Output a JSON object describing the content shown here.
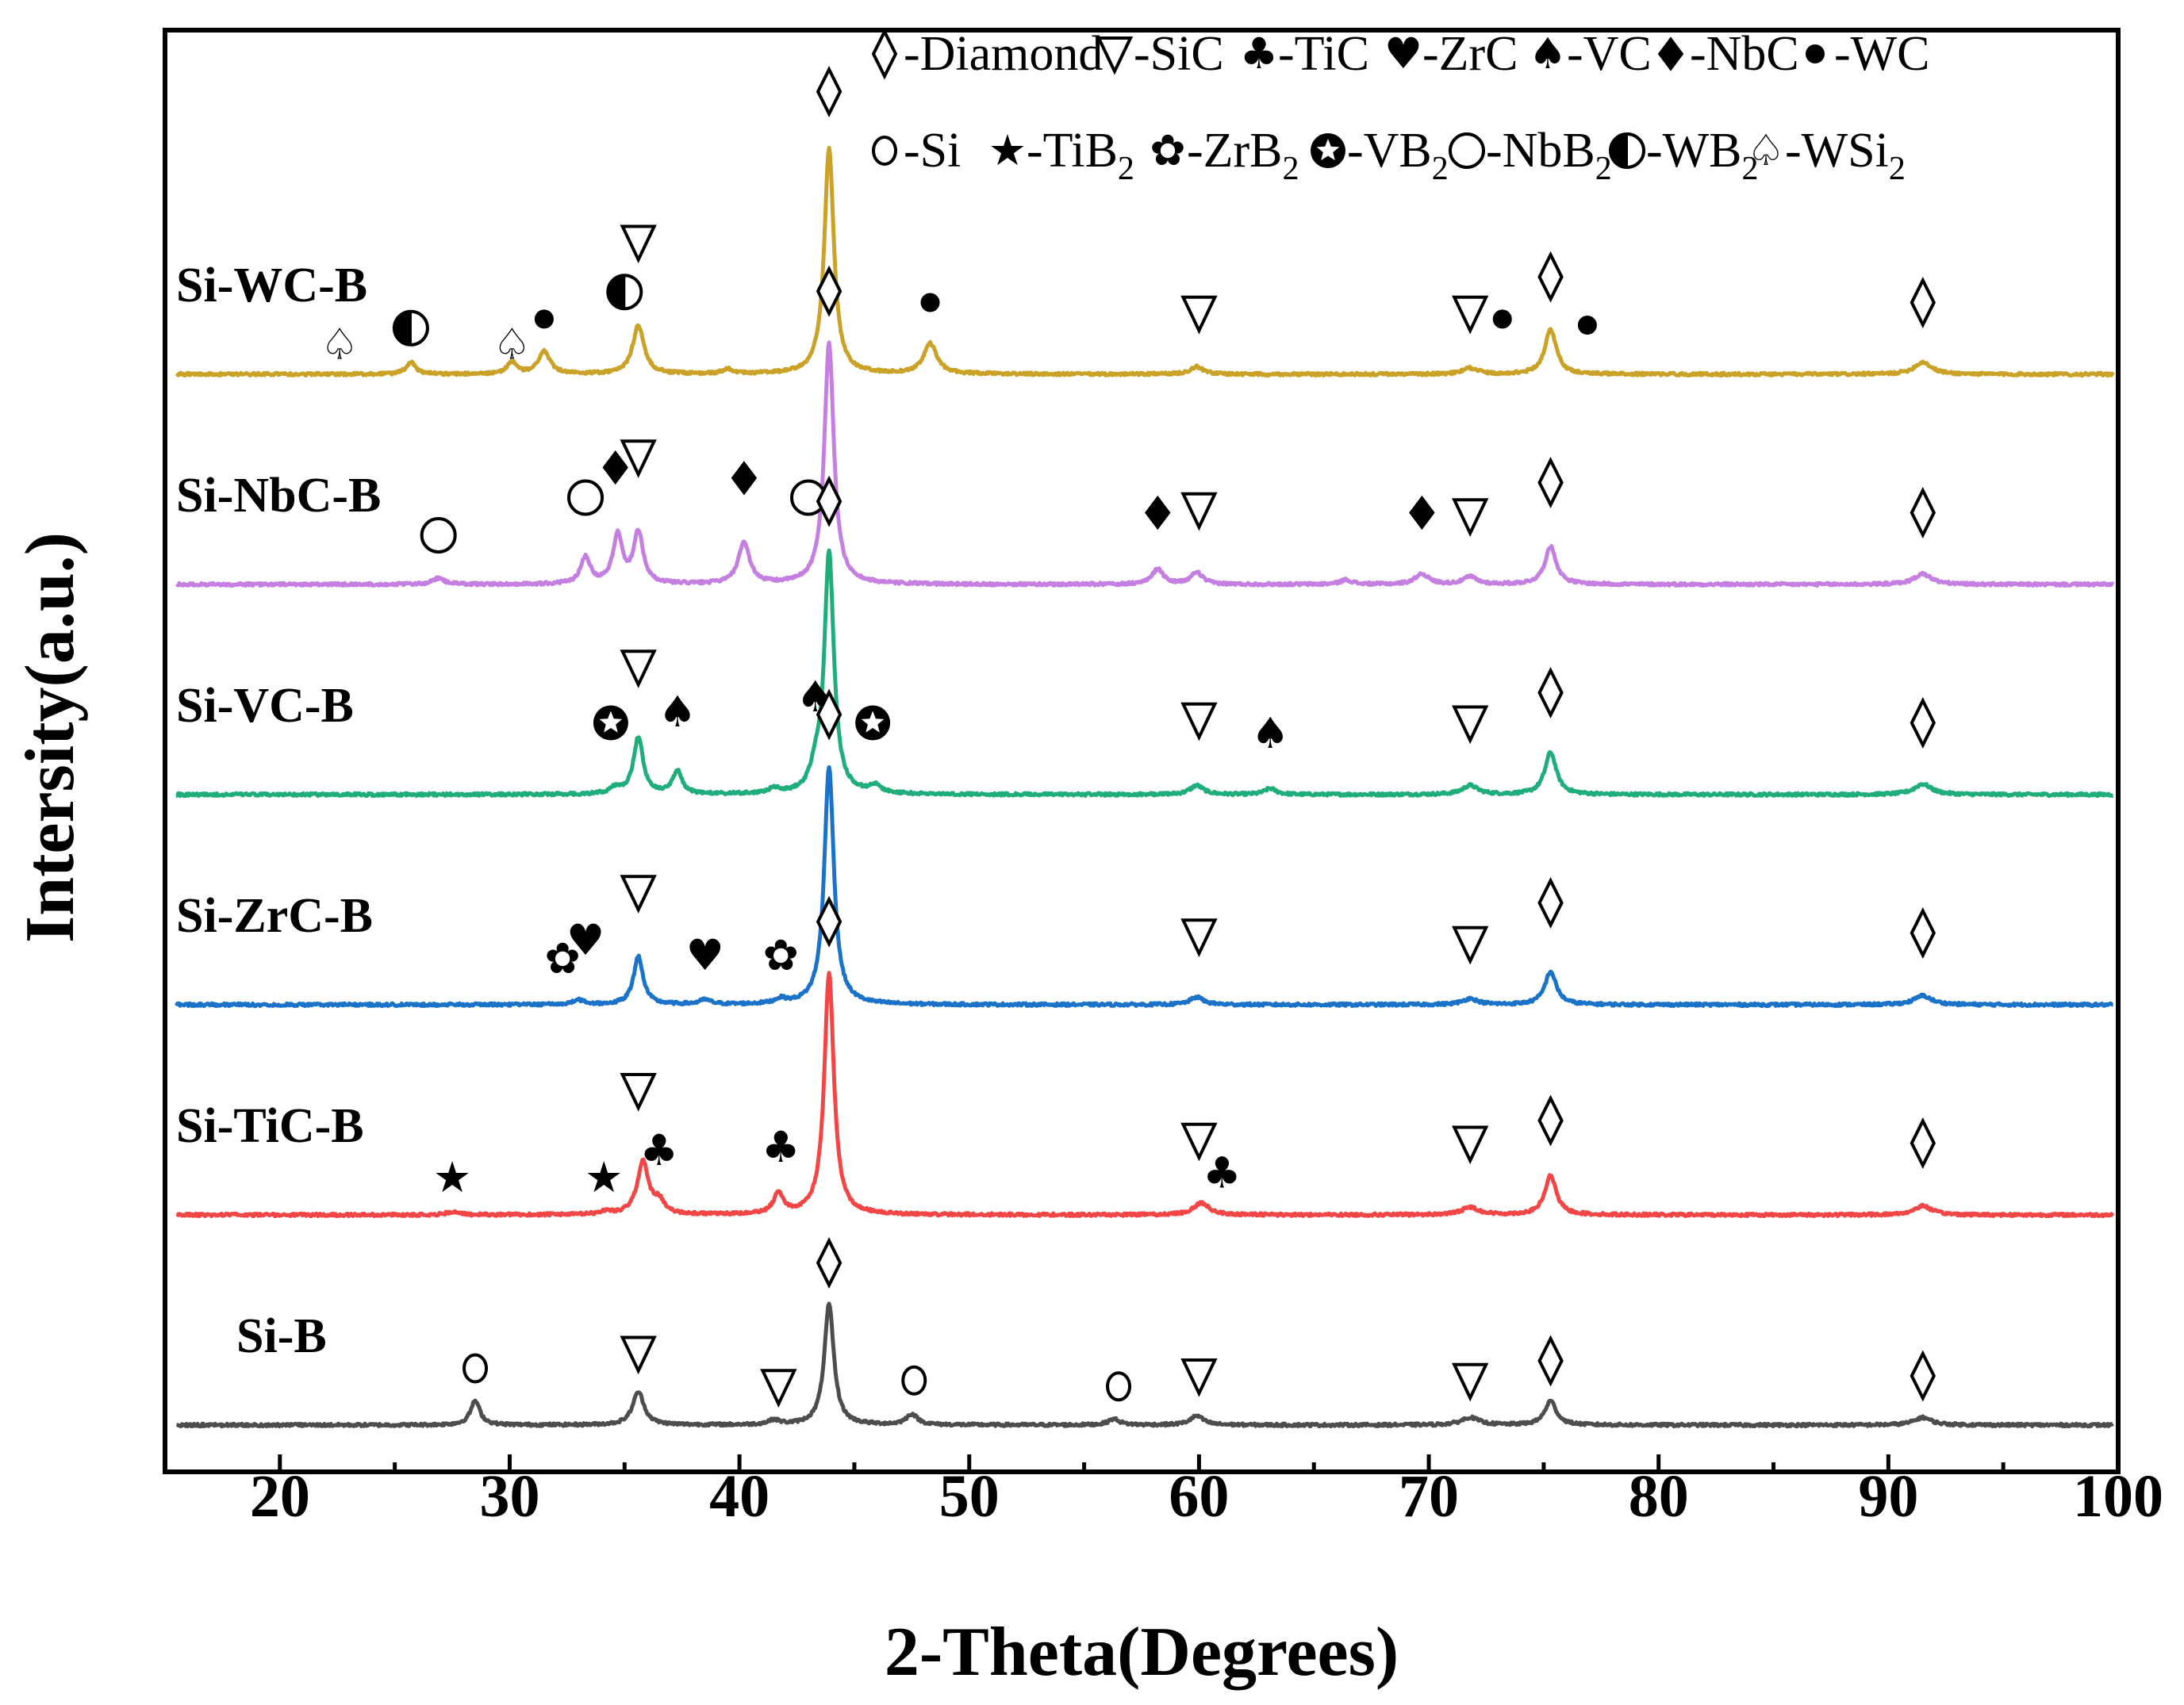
{
  "chart_data": {
    "type": "line",
    "title": "",
    "xlabel": "2-Theta(Degrees)",
    "ylabel": "Intersity(a.u.)",
    "xlim": [
      15,
      100
    ],
    "x_ticks": [
      "20",
      "30",
      "40",
      "50",
      "60",
      "70",
      "80",
      "90",
      "100"
    ],
    "grid": false,
    "legend_position": "top",
    "legend": [
      {
        "key": "diamond",
        "label": "-Diamond"
      },
      {
        "key": "sic",
        "label": "-SiC"
      },
      {
        "key": "tic",
        "label": "-TiC"
      },
      {
        "key": "zrc",
        "label": "-ZrC"
      },
      {
        "key": "vc",
        "label": "-VC"
      },
      {
        "key": "nbc",
        "label": "-NbC"
      },
      {
        "key": "wc",
        "label": "-WC"
      },
      {
        "key": "si",
        "label": "-Si"
      },
      {
        "key": "tib2",
        "label": "-TiB",
        "sub": "2"
      },
      {
        "key": "zrb2",
        "label": "-ZrB",
        "sub": "2"
      },
      {
        "key": "vb2",
        "label": "-VB",
        "sub": "2"
      },
      {
        "key": "nbb2",
        "label": "-NbB",
        "sub": "2"
      },
      {
        "key": "wb2",
        "label": "-WB",
        "sub": "2"
      },
      {
        "key": "wsi2",
        "label": "-WSi",
        "sub": "2"
      }
    ],
    "series": [
      {
        "name": "Si-WC-B",
        "color": "#C9A227",
        "offset": 5,
        "peaks": [
          [
            25.7,
            0.08,
            0.25
          ],
          [
            30.1,
            0.08,
            0.25
          ],
          [
            31.5,
            0.15,
            0.3
          ],
          [
            35.6,
            0.32,
            0.3
          ],
          [
            39.5,
            0.03,
            0.3
          ],
          [
            43.9,
            1.5,
            0.25
          ],
          [
            48.3,
            0.2,
            0.35
          ],
          [
            59.9,
            0.05,
            0.35
          ],
          [
            71.8,
            0.04,
            0.4
          ],
          [
            75.3,
            0.3,
            0.3
          ],
          [
            91.5,
            0.08,
            0.45
          ]
        ],
        "markers": [
          {
            "x": 22.6,
            "key": "wsi2",
            "h": 0.07
          },
          {
            "x": 25.7,
            "key": "wb2",
            "h": 0.18
          },
          {
            "x": 30.1,
            "key": "wsi2",
            "h": 0.07
          },
          {
            "x": 31.5,
            "key": "wc",
            "h": 0.24
          },
          {
            "x": 35.0,
            "key": "wb2",
            "h": 0.42
          },
          {
            "x": 35.6,
            "key": "sic",
            "h": 0.75
          },
          {
            "x": 43.9,
            "key": "diamond",
            "h": 1.75
          },
          {
            "x": 48.3,
            "key": "wc",
            "h": 0.35
          },
          {
            "x": 60.0,
            "key": "sic",
            "h": 0.28
          },
          {
            "x": 71.8,
            "key": "sic",
            "h": 0.28
          },
          {
            "x": 73.2,
            "key": "wc",
            "h": 0.24
          },
          {
            "x": 75.3,
            "key": "diamond",
            "h": 0.52
          },
          {
            "x": 76.9,
            "key": "wc",
            "h": 0.2
          },
          {
            "x": 91.5,
            "key": "diamond",
            "h": 0.35
          }
        ]
      },
      {
        "name": "Si-NbC-B",
        "color": "#C47FE0",
        "offset": 4,
        "peaks": [
          [
            26.9,
            0.04,
            0.3
          ],
          [
            33.3,
            0.18,
            0.25
          ],
          [
            34.7,
            0.32,
            0.25
          ],
          [
            35.6,
            0.34,
            0.25
          ],
          [
            40.2,
            0.27,
            0.3
          ],
          [
            43.9,
            1.6,
            0.25
          ],
          [
            58.2,
            0.1,
            0.3
          ],
          [
            59.9,
            0.08,
            0.3
          ],
          [
            66.4,
            0.03,
            0.3
          ],
          [
            69.7,
            0.07,
            0.35
          ],
          [
            71.8,
            0.05,
            0.35
          ],
          [
            75.3,
            0.25,
            0.3
          ],
          [
            91.5,
            0.07,
            0.45
          ]
        ],
        "markers": [
          {
            "x": 26.9,
            "key": "nbb2",
            "h": 0.2
          },
          {
            "x": 33.3,
            "key": "nbb2",
            "h": 0.45
          },
          {
            "x": 34.6,
            "key": "nbc",
            "h": 0.65
          },
          {
            "x": 35.6,
            "key": "sic",
            "h": 0.72
          },
          {
            "x": 40.2,
            "key": "nbc",
            "h": 0.58
          },
          {
            "x": 43.0,
            "key": "nbb2",
            "h": 0.45
          },
          {
            "x": 43.9,
            "key": "diamond",
            "h": 1.82
          },
          {
            "x": 58.2,
            "key": "nbc",
            "h": 0.35
          },
          {
            "x": 60.0,
            "key": "sic",
            "h": 0.37
          },
          {
            "x": 69.7,
            "key": "nbc",
            "h": 0.35
          },
          {
            "x": 71.8,
            "key": "sic",
            "h": 0.33
          },
          {
            "x": 75.3,
            "key": "diamond",
            "h": 0.55
          },
          {
            "x": 91.5,
            "key": "diamond",
            "h": 0.35
          }
        ]
      },
      {
        "name": "Si-VC-B",
        "color": "#1FAE7A",
        "offset": 3,
        "peaks": [
          [
            34.6,
            0.04,
            0.3
          ],
          [
            35.6,
            0.38,
            0.25
          ],
          [
            37.3,
            0.15,
            0.25
          ],
          [
            41.5,
            0.03,
            0.3
          ],
          [
            43.3,
            0.12,
            0.25
          ],
          [
            43.9,
            1.6,
            0.25
          ],
          [
            45.9,
            0.05,
            0.3
          ],
          [
            59.9,
            0.06,
            0.35
          ],
          [
            63.1,
            0.04,
            0.3
          ],
          [
            71.8,
            0.06,
            0.4
          ],
          [
            75.3,
            0.28,
            0.3
          ],
          [
            91.5,
            0.07,
            0.45
          ]
        ],
        "markers": [
          {
            "x": 34.4,
            "key": "vb2",
            "h": 0.35
          },
          {
            "x": 35.6,
            "key": "sic",
            "h": 0.72
          },
          {
            "x": 37.3,
            "key": "vc",
            "h": 0.42
          },
          {
            "x": 43.3,
            "key": "vc",
            "h": 0.52
          },
          {
            "x": 43.9,
            "key": "diamond",
            "h": 1.82
          },
          {
            "x": 45.8,
            "key": "vb2",
            "h": 0.35
          },
          {
            "x": 60.0,
            "key": "sic",
            "h": 0.37
          },
          {
            "x": 63.1,
            "key": "vc",
            "h": 0.28
          },
          {
            "x": 71.8,
            "key": "sic",
            "h": 0.35
          },
          {
            "x": 75.3,
            "key": "diamond",
            "h": 0.55
          },
          {
            "x": 91.5,
            "key": "diamond",
            "h": 0.35
          }
        ]
      },
      {
        "name": "Si-ZrC-B",
        "color": "#1A72C9",
        "offset": 2,
        "peaks": [
          [
            33.0,
            0.03,
            0.3
          ],
          [
            35.6,
            0.32,
            0.25
          ],
          [
            38.5,
            0.03,
            0.3
          ],
          [
            41.8,
            0.03,
            0.3
          ],
          [
            43.9,
            1.58,
            0.25
          ],
          [
            59.9,
            0.05,
            0.35
          ],
          [
            71.8,
            0.04,
            0.4
          ],
          [
            75.3,
            0.22,
            0.3
          ],
          [
            91.5,
            0.06,
            0.45
          ]
        ],
        "markers": [
          {
            "x": 32.3,
            "key": "zrb2",
            "h": 0.18
          },
          {
            "x": 33.3,
            "key": "zrc",
            "h": 0.3
          },
          {
            "x": 35.6,
            "key": "sic",
            "h": 0.62
          },
          {
            "x": 38.5,
            "key": "zrc",
            "h": 0.2
          },
          {
            "x": 41.8,
            "key": "zrb2",
            "h": 0.2
          },
          {
            "x": 43.9,
            "key": "diamond",
            "h": 1.8
          },
          {
            "x": 60.0,
            "key": "sic",
            "h": 0.33
          },
          {
            "x": 71.8,
            "key": "sic",
            "h": 0.28
          },
          {
            "x": 75.3,
            "key": "diamond",
            "h": 0.55
          },
          {
            "x": 91.5,
            "key": "diamond",
            "h": 0.35
          }
        ]
      },
      {
        "name": "Si-TiC-B",
        "color": "#F24545",
        "offset": 1,
        "peaks": [
          [
            27.5,
            0.02,
            0.3
          ],
          [
            34.2,
            0.02,
            0.3
          ],
          [
            35.8,
            0.35,
            0.3
          ],
          [
            36.5,
            0.08,
            0.25
          ],
          [
            41.7,
            0.14,
            0.25
          ],
          [
            43.9,
            1.6,
            0.25
          ],
          [
            60.1,
            0.08,
            0.4
          ],
          [
            71.8,
            0.05,
            0.45
          ],
          [
            75.3,
            0.26,
            0.3
          ],
          [
            91.5,
            0.06,
            0.45
          ]
        ],
        "markers": [
          {
            "x": 27.5,
            "key": "tib2",
            "h": 0.12
          },
          {
            "x": 34.1,
            "key": "tib2",
            "h": 0.12
          },
          {
            "x": 35.6,
            "key": "sic",
            "h": 0.7
          },
          {
            "x": 36.5,
            "key": "tic",
            "h": 0.3
          },
          {
            "x": 41.8,
            "key": "tic",
            "h": 0.32
          },
          {
            "x": 43.9,
            "key": "diamond",
            "h": 1.82
          },
          {
            "x": 60.0,
            "key": "sic",
            "h": 0.37
          },
          {
            "x": 61.0,
            "key": "tic",
            "h": 0.15
          },
          {
            "x": 71.8,
            "key": "sic",
            "h": 0.35
          },
          {
            "x": 75.3,
            "key": "diamond",
            "h": 0.5
          },
          {
            "x": 91.5,
            "key": "diamond",
            "h": 0.35
          }
        ]
      },
      {
        "name": "Si-B",
        "color": "#4D4D4D",
        "offset": 0,
        "peaks": [
          [
            28.5,
            0.16,
            0.25
          ],
          [
            35.6,
            0.22,
            0.3
          ],
          [
            41.5,
            0.03,
            0.3
          ],
          [
            43.9,
            0.8,
            0.25
          ],
          [
            47.5,
            0.07,
            0.3
          ],
          [
            56.3,
            0.04,
            0.3
          ],
          [
            59.9,
            0.06,
            0.35
          ],
          [
            71.8,
            0.05,
            0.45
          ],
          [
            75.3,
            0.16,
            0.3
          ],
          [
            91.5,
            0.05,
            0.45
          ]
        ],
        "markers": [
          {
            "x": 28.5,
            "key": "si",
            "h": 0.25
          },
          {
            "x": 35.6,
            "key": "sic",
            "h": 0.35
          },
          {
            "x": 41.7,
            "key": "sic",
            "h": 0.13
          },
          {
            "x": 43.9,
            "key": "diamond",
            "h": 0.95
          },
          {
            "x": 47.6,
            "key": "si",
            "h": 0.17
          },
          {
            "x": 56.5,
            "key": "si",
            "h": 0.13
          },
          {
            "x": 60.0,
            "key": "sic",
            "h": 0.2
          },
          {
            "x": 71.8,
            "key": "sic",
            "h": 0.17
          },
          {
            "x": 75.3,
            "key": "diamond",
            "h": 0.3
          },
          {
            "x": 91.5,
            "key": "diamond",
            "h": 0.2
          }
        ]
      }
    ]
  }
}
